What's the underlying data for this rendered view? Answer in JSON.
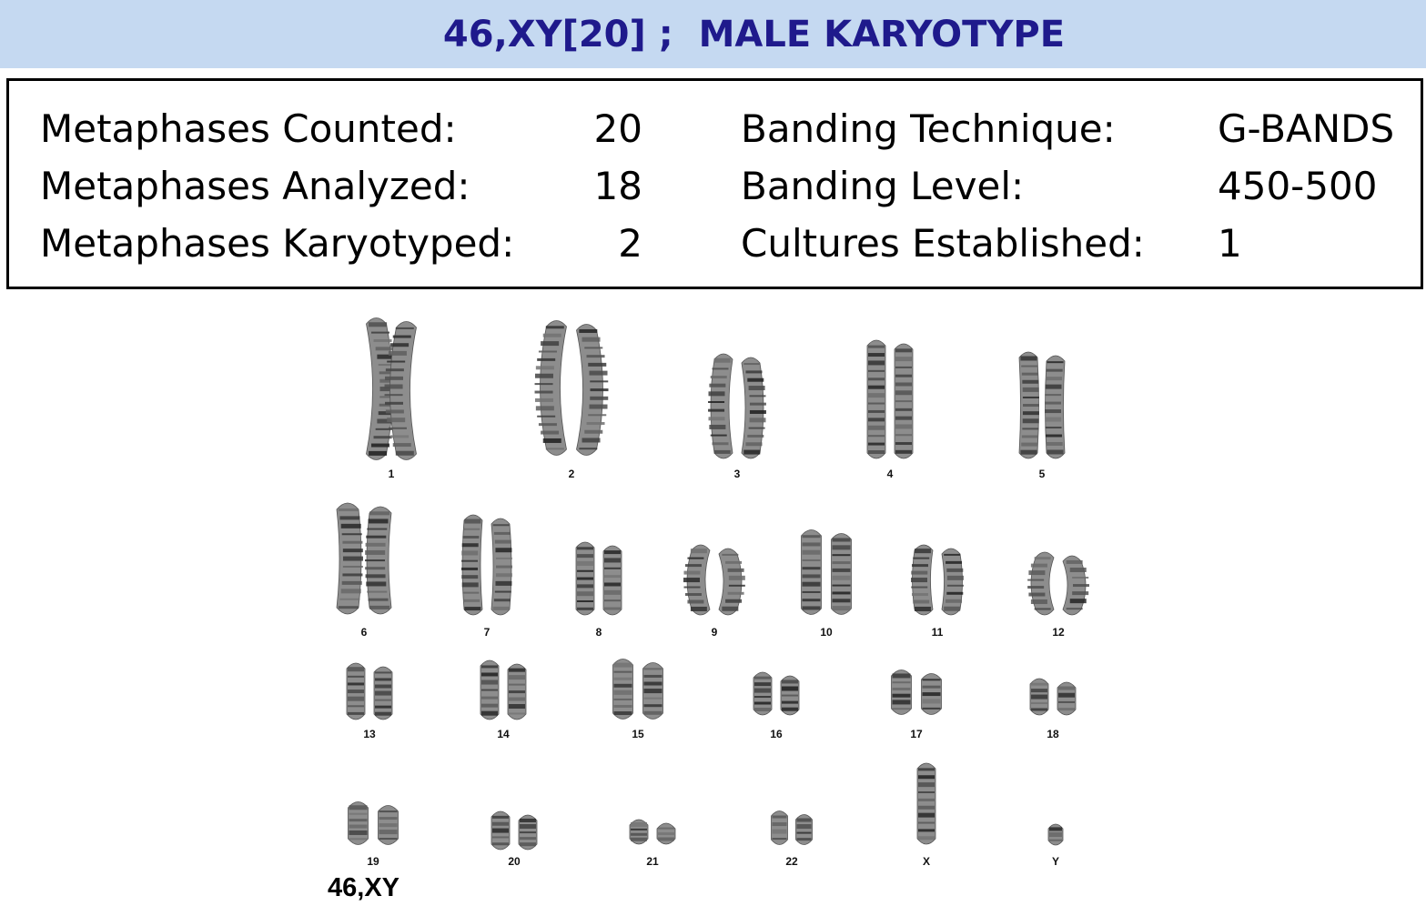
{
  "header": {
    "title": "46,XY[20] ;  MALE KARYOTYPE"
  },
  "summary": {
    "left": [
      {
        "label": "Metaphases Counted:",
        "value": "20"
      },
      {
        "label": "Metaphases Analyzed:",
        "value": "18"
      },
      {
        "label": "Metaphases Karyotyped:",
        "value": "2"
      }
    ],
    "right": [
      {
        "label": "Banding Technique:",
        "value": "G-BANDS"
      },
      {
        "label": "Banding Level:",
        "value": "450-500"
      },
      {
        "label": "Cultures Established:",
        "value": "1"
      }
    ]
  },
  "karyogram": {
    "labels": [
      "1",
      "2",
      "3",
      "4",
      "5",
      "6",
      "7",
      "8",
      "9",
      "10",
      "11",
      "12",
      "13",
      "14",
      "15",
      "16",
      "17",
      "18",
      "19",
      "20",
      "21",
      "22",
      "X",
      "Y"
    ],
    "karyotype_label": "46,XY"
  },
  "colors": {
    "banner": "#c5d9f1",
    "title": "#1f1a8c"
  }
}
